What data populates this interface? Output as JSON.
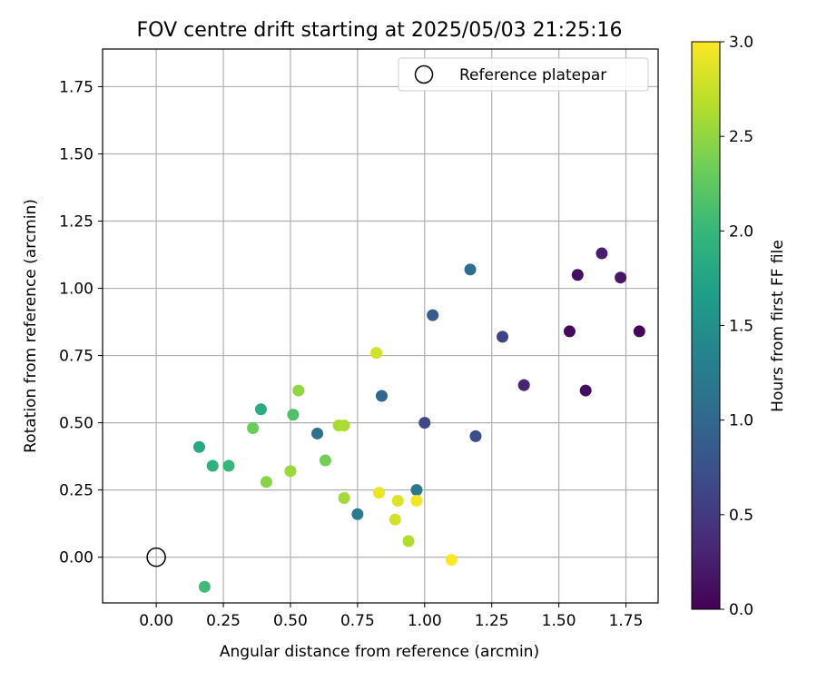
{
  "chart_data": {
    "type": "scatter",
    "title": "FOV centre drift starting at 2025/05/03 21:25:16",
    "xlabel": "Angular distance from reference (arcmin)",
    "ylabel": "Rotation from reference (arcmin)",
    "xlim": [
      -0.2,
      1.87
    ],
    "ylim": [
      -0.17,
      1.89
    ],
    "xticks": [
      0.0,
      0.25,
      0.5,
      0.75,
      1.0,
      1.25,
      1.5,
      1.75
    ],
    "xtick_labels": [
      "0.00",
      "0.25",
      "0.50",
      "0.75",
      "1.00",
      "1.25",
      "1.50",
      "1.75"
    ],
    "yticks": [
      0.0,
      0.25,
      0.5,
      0.75,
      1.0,
      1.25,
      1.5,
      1.75
    ],
    "ytick_labels": [
      "0.00",
      "0.25",
      "0.50",
      "0.75",
      "1.00",
      "1.25",
      "1.50",
      "1.75"
    ],
    "grid": true,
    "legend": {
      "position": "top-right",
      "label": "Reference platepar"
    },
    "reference": {
      "x": 0.0,
      "y": 0.0
    },
    "colorbar": {
      "label": "Hours from first FF file",
      "colormap": "viridis",
      "range": [
        0.0,
        3.0
      ],
      "ticks": [
        0.0,
        0.5,
        1.0,
        1.5,
        2.0,
        2.5,
        3.0
      ],
      "tick_labels": [
        "0.0",
        "0.5",
        "1.0",
        "1.5",
        "2.0",
        "2.5",
        "3.0"
      ]
    },
    "points": [
      {
        "x": 1.8,
        "y": 0.84,
        "c": 0.05
      },
      {
        "x": 1.54,
        "y": 0.84,
        "c": 0.08
      },
      {
        "x": 1.6,
        "y": 0.62,
        "c": 0.1
      },
      {
        "x": 1.57,
        "y": 1.05,
        "c": 0.12
      },
      {
        "x": 1.73,
        "y": 1.04,
        "c": 0.18
      },
      {
        "x": 1.66,
        "y": 1.13,
        "c": 0.25
      },
      {
        "x": 1.37,
        "y": 0.64,
        "c": 0.3
      },
      {
        "x": 1.29,
        "y": 0.82,
        "c": 0.6
      },
      {
        "x": 1.0,
        "y": 0.5,
        "c": 0.65
      },
      {
        "x": 1.19,
        "y": 0.45,
        "c": 0.7
      },
      {
        "x": 1.03,
        "y": 0.9,
        "c": 0.85
      },
      {
        "x": 1.17,
        "y": 1.07,
        "c": 1.05
      },
      {
        "x": 0.84,
        "y": 0.6,
        "c": 1.0
      },
      {
        "x": 0.6,
        "y": 0.46,
        "c": 1.1
      },
      {
        "x": 0.97,
        "y": 0.25,
        "c": 1.2
      },
      {
        "x": 0.75,
        "y": 0.16,
        "c": 1.25
      },
      {
        "x": 0.39,
        "y": 0.55,
        "c": 1.85
      },
      {
        "x": 0.16,
        "y": 0.41,
        "c": 1.8
      },
      {
        "x": 0.21,
        "y": 0.34,
        "c": 1.9
      },
      {
        "x": 0.27,
        "y": 0.34,
        "c": 2.0
      },
      {
        "x": 0.18,
        "y": -0.11,
        "c": 2.05
      },
      {
        "x": 0.51,
        "y": 0.53,
        "c": 2.15
      },
      {
        "x": 0.36,
        "y": 0.48,
        "c": 2.3
      },
      {
        "x": 0.63,
        "y": 0.36,
        "c": 2.35
      },
      {
        "x": 0.41,
        "y": 0.28,
        "c": 2.45
      },
      {
        "x": 0.53,
        "y": 0.62,
        "c": 2.5
      },
      {
        "x": 0.5,
        "y": 0.32,
        "c": 2.55
      },
      {
        "x": 0.68,
        "y": 0.49,
        "c": 2.6
      },
      {
        "x": 0.7,
        "y": 0.49,
        "c": 2.62
      },
      {
        "x": 0.7,
        "y": 0.22,
        "c": 2.58
      },
      {
        "x": 0.94,
        "y": 0.06,
        "c": 2.65
      },
      {
        "x": 0.82,
        "y": 0.76,
        "c": 2.8
      },
      {
        "x": 0.89,
        "y": 0.14,
        "c": 2.8
      },
      {
        "x": 0.9,
        "y": 0.21,
        "c": 2.85
      },
      {
        "x": 0.83,
        "y": 0.24,
        "c": 2.92
      },
      {
        "x": 0.97,
        "y": 0.21,
        "c": 2.95
      },
      {
        "x": 1.1,
        "y": -0.01,
        "c": 3.0
      }
    ]
  }
}
